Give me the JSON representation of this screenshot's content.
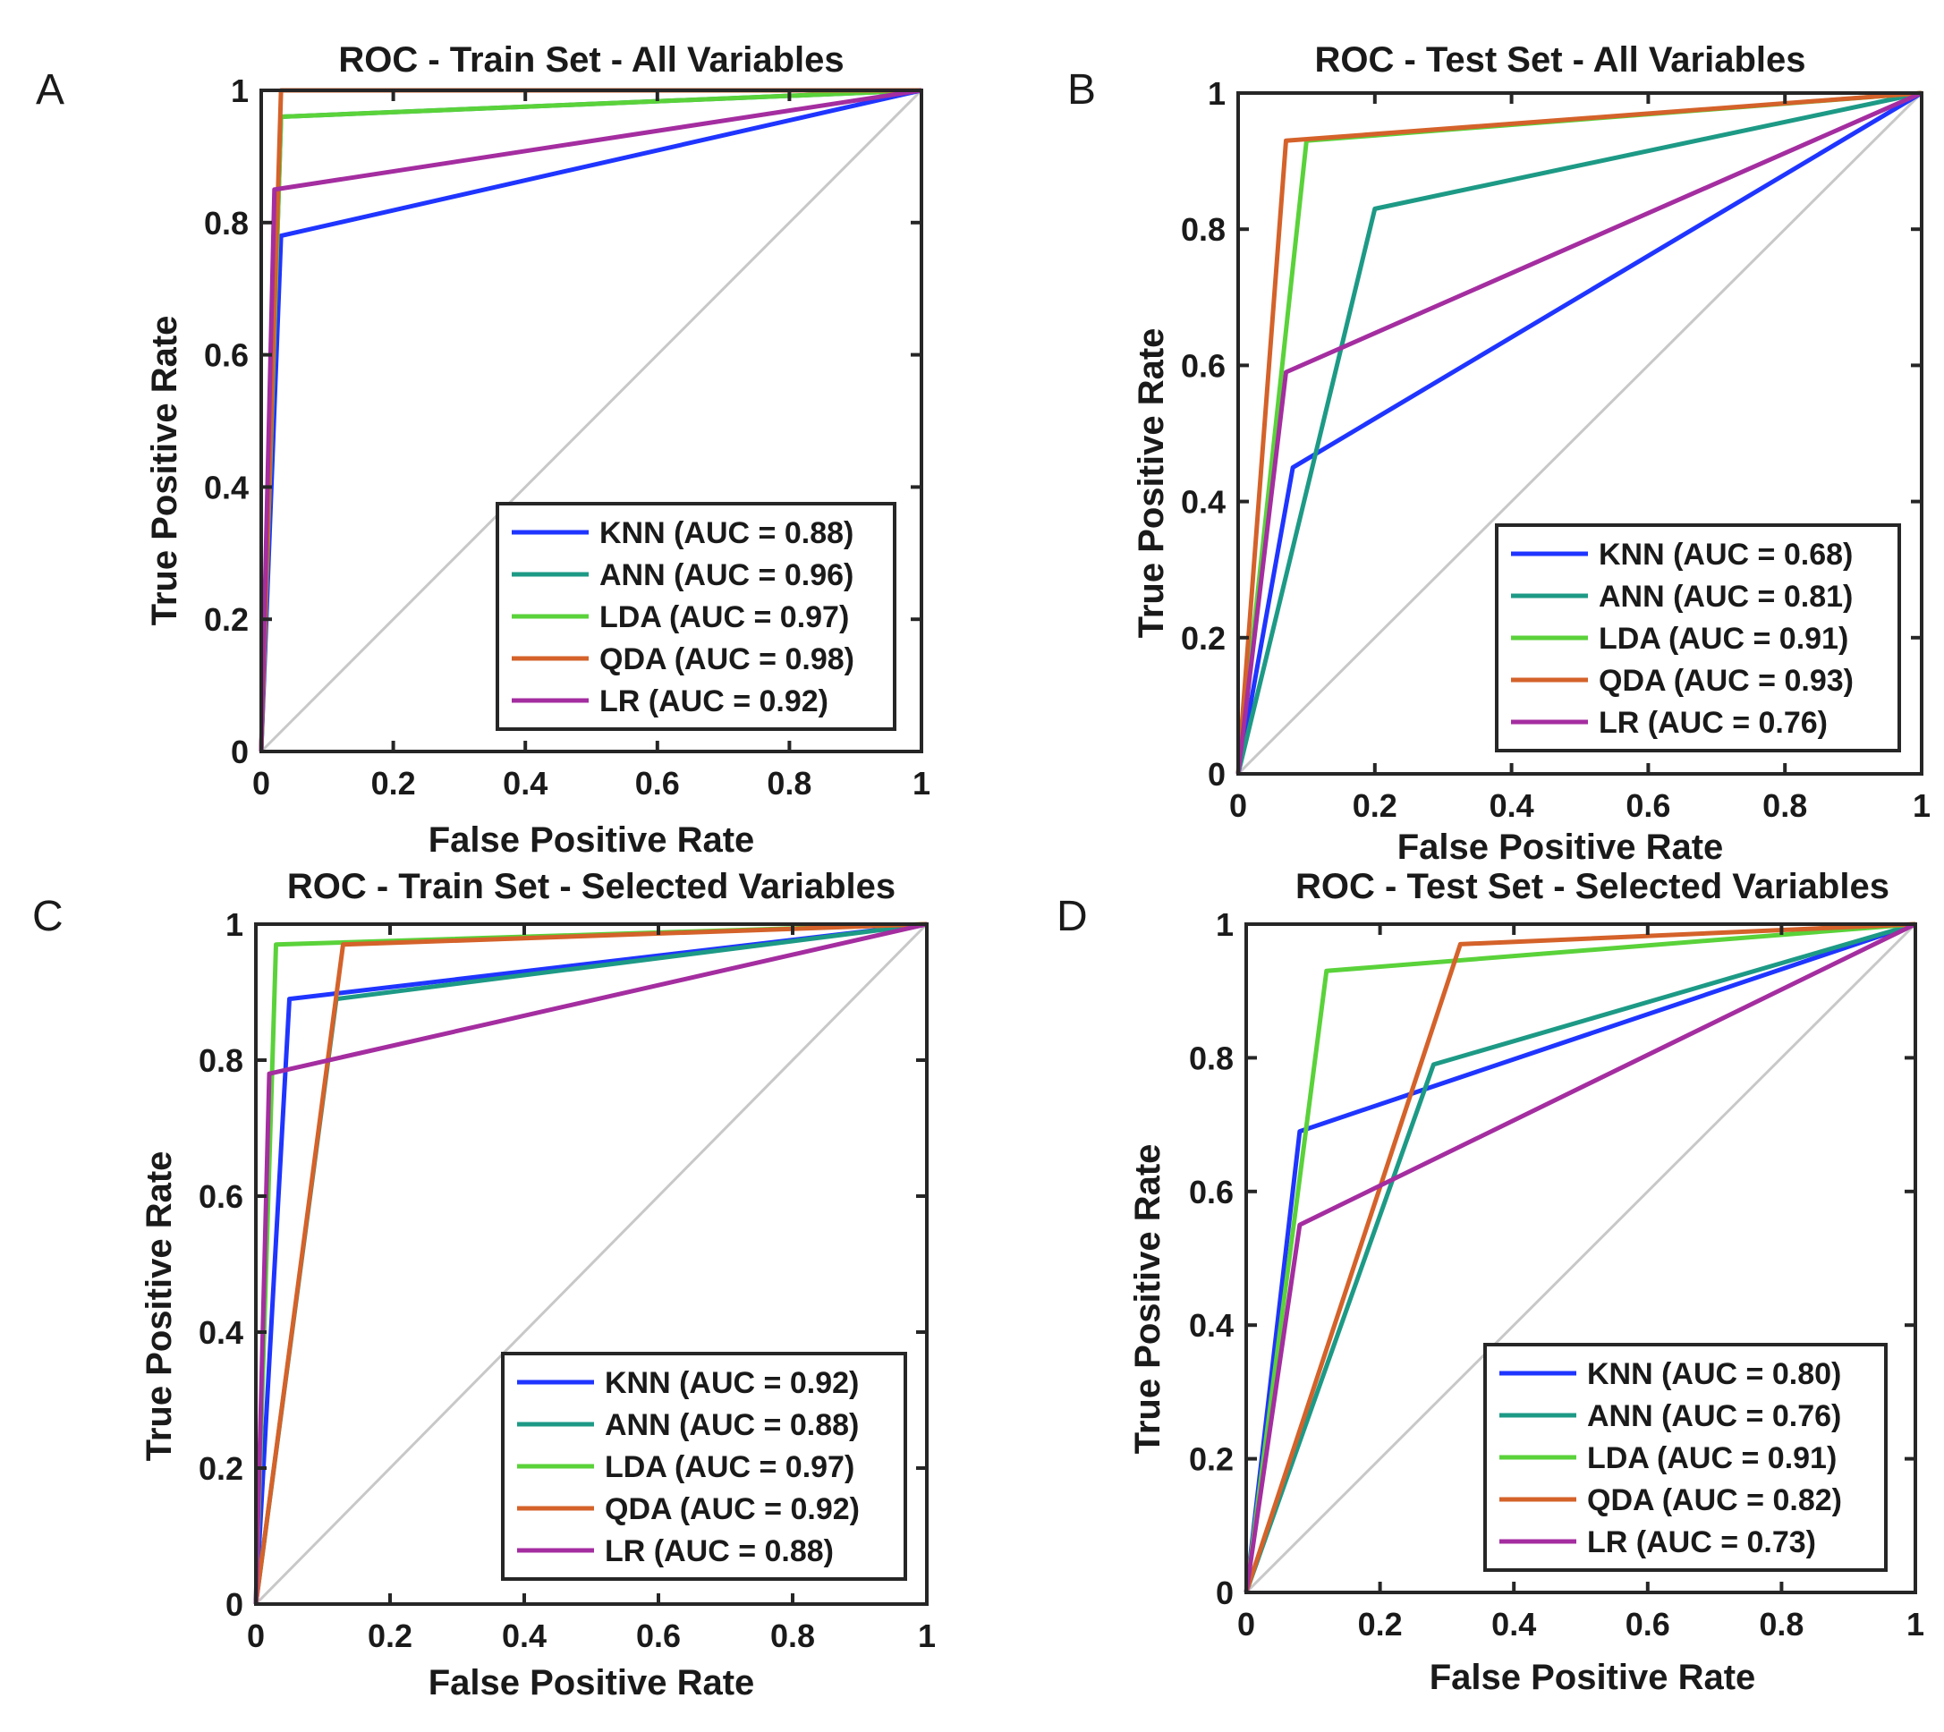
{
  "chart_data": [
    {
      "panel": "A",
      "type": "line",
      "title": "ROC - Train Set - All Variables",
      "xlabel": "False Positive Rate",
      "ylabel": "True Positive Rate",
      "xlim": [
        0,
        1
      ],
      "ylim": [
        0,
        1
      ],
      "xticks": [
        "0",
        "0.2",
        "0.4",
        "0.6",
        "0.8",
        "1"
      ],
      "yticks": [
        "0",
        "0.2",
        "0.4",
        "0.6",
        "0.8",
        "1"
      ],
      "legend_position": "bottom-right",
      "series": [
        {
          "name": "KNN (AUC = 0.88)",
          "color": "#1f35ff",
          "x": [
            0,
            0.03,
            1
          ],
          "y": [
            0,
            0.78,
            1
          ]
        },
        {
          "name": "ANN (AUC = 0.96)",
          "color": "#1d9a86",
          "x": [
            0,
            0.03,
            1
          ],
          "y": [
            0,
            0.96,
            1
          ]
        },
        {
          "name": "LDA (AUC = 0.97)",
          "color": "#5ad23a",
          "x": [
            0,
            0.03,
            1
          ],
          "y": [
            0,
            0.96,
            1
          ]
        },
        {
          "name": "QDA (AUC = 0.98)",
          "color": "#d4622a",
          "x": [
            0,
            0.03,
            1
          ],
          "y": [
            0,
            1.0,
            1
          ]
        },
        {
          "name": "LR (AUC = 0.92)",
          "color": "#a42da0",
          "x": [
            0,
            0.02,
            1
          ],
          "y": [
            0,
            0.85,
            1
          ]
        }
      ]
    },
    {
      "panel": "B",
      "type": "line",
      "title": "ROC - Test Set - All Variables",
      "xlabel": "False Positive Rate",
      "ylabel": "True Positive Rate",
      "xlim": [
        0,
        1
      ],
      "ylim": [
        0,
        1
      ],
      "xticks": [
        "0",
        "0.2",
        "0.4",
        "0.6",
        "0.8",
        "1"
      ],
      "yticks": [
        "0",
        "0.2",
        "0.4",
        "0.6",
        "0.8",
        "1"
      ],
      "legend_position": "bottom-right",
      "series": [
        {
          "name": "KNN (AUC = 0.68)",
          "color": "#1f35ff",
          "x": [
            0,
            0.08,
            1
          ],
          "y": [
            0,
            0.45,
            1
          ]
        },
        {
          "name": "ANN (AUC = 0.81)",
          "color": "#1d9a86",
          "x": [
            0,
            0.2,
            1
          ],
          "y": [
            0,
            0.83,
            1
          ]
        },
        {
          "name": "LDA (AUC = 0.91)",
          "color": "#5ad23a",
          "x": [
            0,
            0.1,
            1
          ],
          "y": [
            0,
            0.93,
            1
          ]
        },
        {
          "name": "QDA (AUC = 0.93)",
          "color": "#d4622a",
          "x": [
            0,
            0.07,
            1
          ],
          "y": [
            0,
            0.93,
            1
          ]
        },
        {
          "name": "LR (AUC = 0.76)",
          "color": "#a42da0",
          "x": [
            0,
            0.07,
            1
          ],
          "y": [
            0,
            0.59,
            1
          ]
        }
      ]
    },
    {
      "panel": "C",
      "type": "line",
      "title": "ROC - Train Set - Selected Variables",
      "xlabel": "False Positive Rate",
      "ylabel": "True Positive Rate",
      "xlim": [
        0,
        1
      ],
      "ylim": [
        0,
        1
      ],
      "xticks": [
        "0",
        "0.2",
        "0.4",
        "0.6",
        "0.8",
        "1"
      ],
      "yticks": [
        "0",
        "0.2",
        "0.4",
        "0.6",
        "0.8",
        "1"
      ],
      "legend_position": "bottom-right",
      "series": [
        {
          "name": "KNN (AUC = 0.92)",
          "color": "#1f35ff",
          "x": [
            0,
            0.05,
            1
          ],
          "y": [
            0,
            0.89,
            1
          ]
        },
        {
          "name": "ANN (AUC = 0.88)",
          "color": "#1d9a86",
          "x": [
            0,
            0.12,
            1
          ],
          "y": [
            0,
            0.89,
            1
          ]
        },
        {
          "name": "LDA (AUC = 0.97)",
          "color": "#5ad23a",
          "x": [
            0,
            0.03,
            1
          ],
          "y": [
            0,
            0.97,
            1
          ]
        },
        {
          "name": "QDA (AUC = 0.92)",
          "color": "#d4622a",
          "x": [
            0,
            0.13,
            1
          ],
          "y": [
            0,
            0.97,
            1
          ]
        },
        {
          "name": "LR (AUC = 0.88)",
          "color": "#a42da0",
          "x": [
            0,
            0.02,
            1
          ],
          "y": [
            0,
            0.78,
            1
          ]
        }
      ]
    },
    {
      "panel": "D",
      "type": "line",
      "title": "ROC - Test Set - Selected Variables",
      "xlabel": "False Positive Rate",
      "ylabel": "True Positive Rate",
      "xlim": [
        0,
        1
      ],
      "ylim": [
        0,
        1
      ],
      "xticks": [
        "0",
        "0.2",
        "0.4",
        "0.6",
        "0.8",
        "1"
      ],
      "yticks": [
        "0",
        "0.2",
        "0.4",
        "0.6",
        "0.8",
        "1"
      ],
      "legend_position": "bottom-right",
      "series": [
        {
          "name": "KNN (AUC = 0.80)",
          "color": "#1f35ff",
          "x": [
            0,
            0.08,
            1
          ],
          "y": [
            0,
            0.69,
            1
          ]
        },
        {
          "name": "ANN (AUC = 0.76)",
          "color": "#1d9a86",
          "x": [
            0,
            0.28,
            1
          ],
          "y": [
            0,
            0.79,
            1
          ]
        },
        {
          "name": "LDA (AUC = 0.91)",
          "color": "#5ad23a",
          "x": [
            0,
            0.12,
            1
          ],
          "y": [
            0,
            0.93,
            1
          ]
        },
        {
          "name": "QDA (AUC = 0.82)",
          "color": "#d4622a",
          "x": [
            0,
            0.32,
            1
          ],
          "y": [
            0,
            0.97,
            1
          ]
        },
        {
          "name": "LR (AUC = 0.73)",
          "color": "#a42da0",
          "x": [
            0,
            0.08,
            1
          ],
          "y": [
            0,
            0.55,
            1
          ]
        }
      ]
    }
  ],
  "colors": {
    "diagonal": "#c8c8c8",
    "axis": "#262626"
  }
}
